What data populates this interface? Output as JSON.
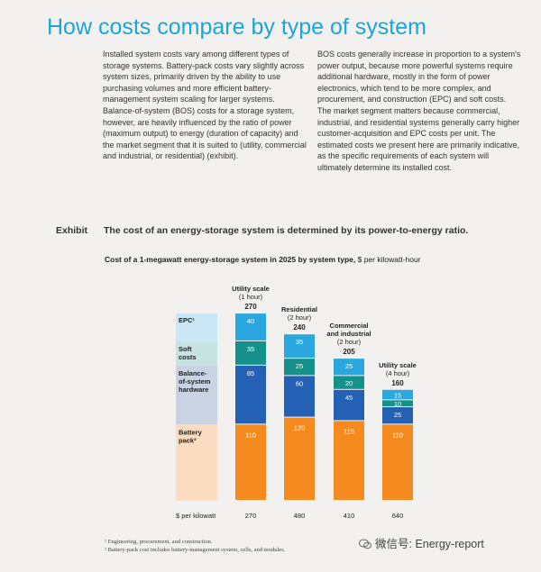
{
  "page_title": "How costs compare by type of system",
  "body_left": "Installed system costs vary among different types of storage systems. Battery-pack costs vary slightly across system sizes, primarily driven by the ability to use purchasing volumes and more efficient battery-management system scaling for larger systems. Balance-of-system (BOS) costs for a storage system, however, are heavily influenced by the ratio of power (maximum output) to energy (duration of capacity) and the market segment that it is suited to (utility, commercial and industrial, or residential) (exhibit).",
  "body_right": "BOS costs generally increase in proportion to a system's power output, because more powerful systems require additional hardware, mostly in the form of power electronics, which tend to be more complex, and procurement, and construction (EPC) and soft costs. The market segment matters because commercial, industrial, and residential systems generally carry higher customer-acquisition and EPC costs per unit. The estimated costs we present here are primarily indicative, as the specific requirements of each system will ultimately determine its installed cost.",
  "exhibit": {
    "tag": "Exhibit",
    "title": "The cost of an energy-storage system is determined by its power-to-energy ratio."
  },
  "subtitle": {
    "bold": "Cost of a 1-megawatt energy-storage system in 2025 by system type,",
    "unit": " $ per kilowatt-hour"
  },
  "footnotes": [
    "¹ Engineering, procurement, and construction.",
    "² Battery-pack cost includes battery-management system, cells, and modules."
  ],
  "watermark": "微信号: Energy-report",
  "chart_data": {
    "type": "bar",
    "stacked": true,
    "unit": "$ per kilowatt-hour",
    "categories": [
      {
        "name": "Utility scale",
        "sub": "(1 hour)",
        "total": 270,
        "per_kw": 270
      },
      {
        "name": "Residential",
        "sub": "(2 hour)",
        "total": 240,
        "per_kw": 480
      },
      {
        "name": "Commercial and industrial",
        "name_lines": [
          "Commercial",
          "and industrial"
        ],
        "sub": "(2 hour)",
        "total": 205,
        "per_kw": 410
      },
      {
        "name": "Utility scale",
        "sub": "(4 hour)",
        "total": 160,
        "per_kw": 640
      }
    ],
    "series": [
      {
        "name": "Battery pack²",
        "label_lines": [
          "Battery",
          "pack²"
        ],
        "color": "#f58b1f",
        "legend_bg": "#fbdcc0",
        "values": [
          110,
          120,
          115,
          110
        ]
      },
      {
        "name": "Balance-of-system hardware",
        "label_lines": [
          "Balance-",
          "of-system",
          "hardware"
        ],
        "color": "#2460b3",
        "legend_bg": "#c9d3e4",
        "values": [
          85,
          60,
          45,
          25
        ]
      },
      {
        "name": "Soft costs",
        "label_lines": [
          "Soft",
          "costs"
        ],
        "color": "#16918a",
        "legend_bg": "#c6e3e2",
        "values": [
          35,
          25,
          20,
          10
        ]
      },
      {
        "name": "EPC¹",
        "label_lines": [
          "EPC¹"
        ],
        "color": "#2aa7de",
        "legend_bg": "#cbe6f4",
        "values": [
          40,
          35,
          25,
          15
        ]
      }
    ],
    "per_kw_label": "$ per kilowatt",
    "ylim": [
      0,
      270
    ]
  }
}
